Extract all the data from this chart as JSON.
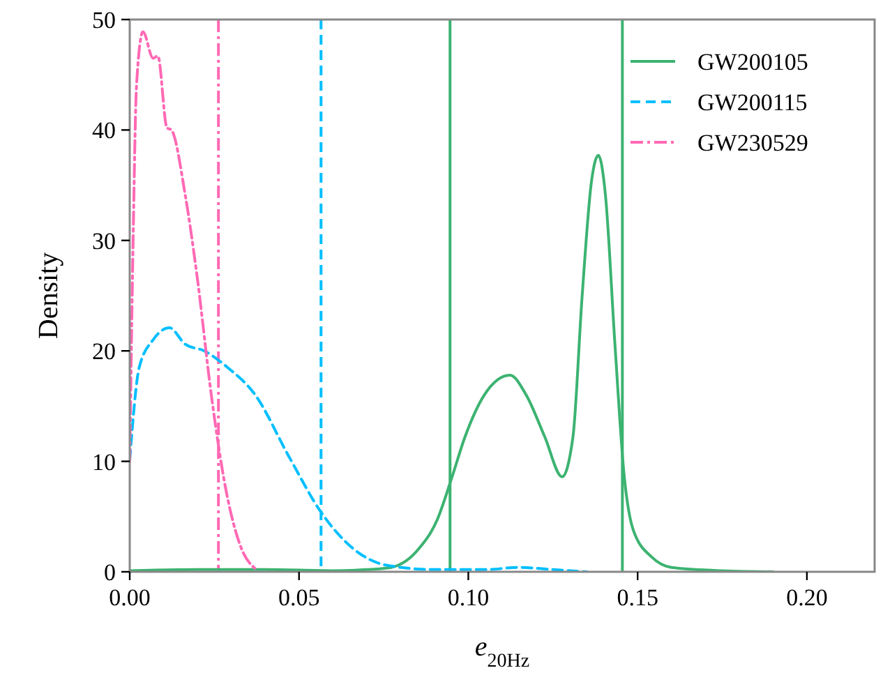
{
  "chart_data": {
    "type": "line",
    "xlabel": "e$_{20Hz}$",
    "ylabel": "Density",
    "xlim": [
      0,
      0.22
    ],
    "ylim": [
      0,
      50
    ],
    "xticks": [
      {
        "value": 0,
        "label": "0.00"
      },
      {
        "value": 0.05,
        "label": "0.05"
      },
      {
        "value": 0.1,
        "label": "0.10"
      },
      {
        "value": 0.15,
        "label": "0.15"
      },
      {
        "value": 0.2,
        "label": "0.20"
      }
    ],
    "yticks": [
      0,
      10,
      20,
      30,
      40,
      50
    ],
    "grid": false,
    "legend": "top right",
    "series": [
      {
        "name": "GW200105",
        "color": "#3cb371",
        "line_style": "solid",
        "x": [
          0,
          0.02,
          0.04,
          0.06,
          0.07,
          0.0772,
          0.0854,
          0.0908,
          0.095,
          0.099,
          0.1047,
          0.1123,
          0.1171,
          0.1226,
          0.1277,
          0.1309,
          0.1336,
          0.1364,
          0.1384,
          0.1405,
          0.1433,
          0.146,
          0.1487,
          0.1543,
          0.16,
          0.175,
          0.19
        ],
        "values": [
          0.1,
          0.2,
          0.2,
          0.1,
          0.2,
          0.4,
          2.1,
          4.7,
          8.4,
          12.2,
          16.0,
          17.8,
          16.0,
          12.2,
          8.6,
          12.2,
          24.9,
          35.4,
          37.7,
          34.1,
          20.6,
          8.8,
          3.8,
          1.3,
          0.4,
          0.1,
          0
        ]
      },
      {
        "name": "GW200115",
        "color": "#00bfff",
        "line_style": "dashed",
        "x": [
          0,
          0.0028,
          0.0069,
          0.0117,
          0.0164,
          0.022,
          0.0289,
          0.0371,
          0.0469,
          0.0565,
          0.066,
          0.0758,
          0.09,
          0.105,
          0.115,
          0.125,
          0.135
        ],
        "values": [
          10.1,
          18.5,
          21,
          22.1,
          20.6,
          20.0,
          18.5,
          16,
          10.5,
          5.4,
          2.1,
          0.6,
          0.2,
          0.2,
          0.4,
          0.2,
          0
        ]
      },
      {
        "name": "GW230529",
        "color": "#ff69b4",
        "line_style": "dashdot",
        "x": [
          0,
          0.001,
          0.002,
          0.0039,
          0.0069,
          0.0083,
          0.011,
          0.0123,
          0.0164,
          0.02,
          0.0241,
          0.0283,
          0.033,
          0.037
        ],
        "values": [
          10,
          30,
          44,
          48.9,
          46.5,
          46.7,
          40.2,
          40.0,
          34.1,
          26.5,
          16.0,
          7.6,
          2.1,
          0.3
        ]
      }
    ],
    "ref_lines": [
      {
        "axis": "x",
        "value": 0.0946,
        "color": "#3cb371",
        "line_style": "solid"
      },
      {
        "axis": "x",
        "value": 0.1455,
        "color": "#3cb371",
        "line_style": "solid"
      },
      {
        "axis": "x",
        "value": 0.0565,
        "color": "#00bfff",
        "line_style": "dashed"
      },
      {
        "axis": "x",
        "value": 0.0262,
        "color": "#ff69b4",
        "line_style": "dashdot"
      }
    ]
  }
}
